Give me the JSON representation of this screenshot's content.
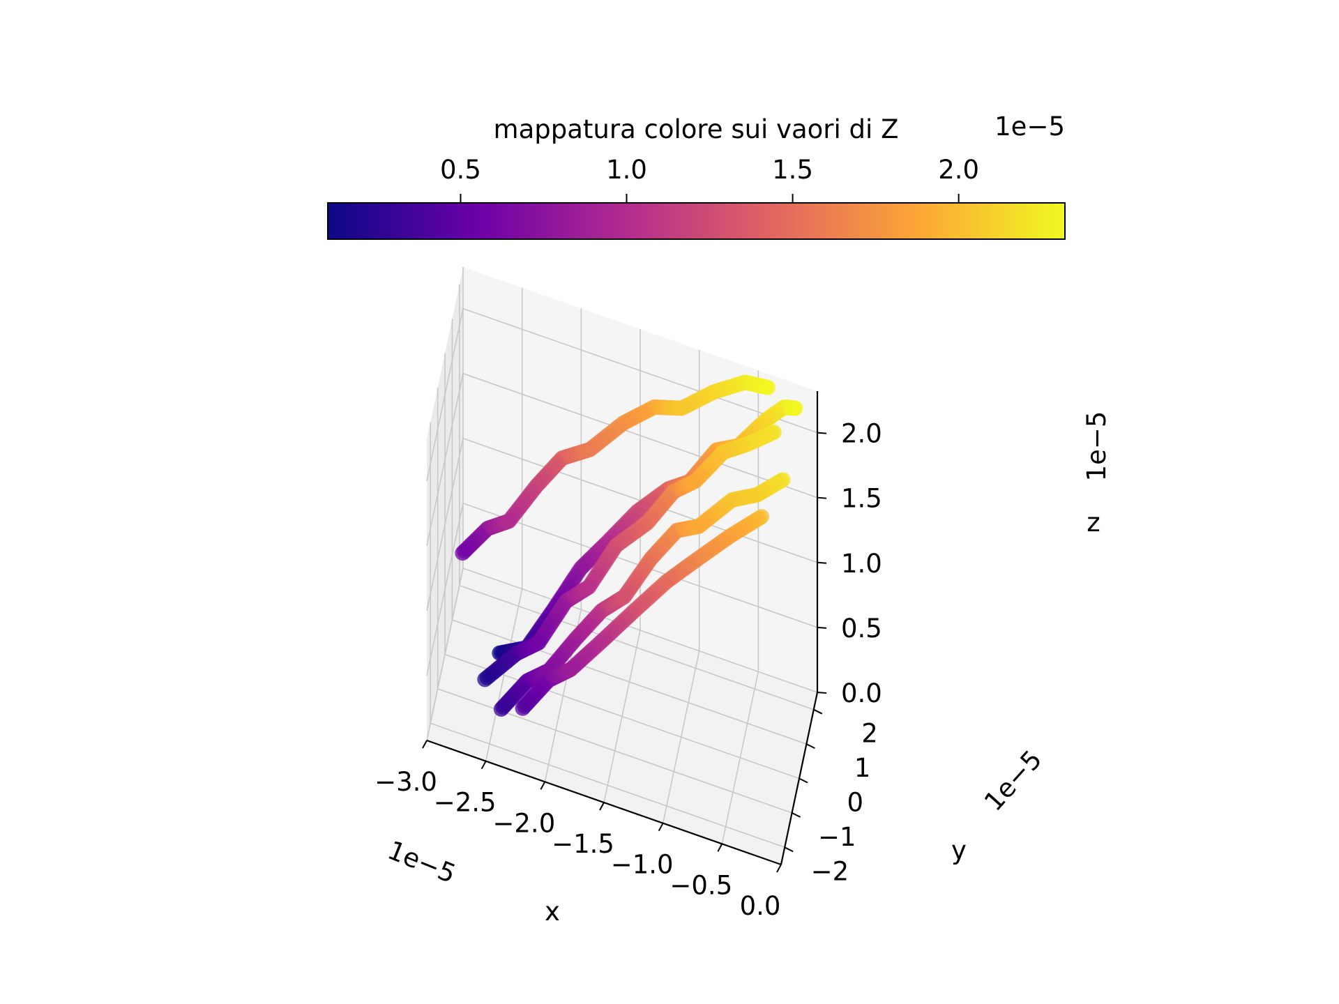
{
  "chart_data": {
    "type": "scatter",
    "projection": "3d",
    "colormap": "plasma",
    "colorbar": {
      "title": "mappatura colore sui vaori di Z",
      "orientation": "horizontal",
      "position": "top",
      "range": [
        1e-06,
        2.32e-05
      ],
      "ticks": [
        5e-06,
        1e-05,
        1.5e-05,
        2e-05
      ],
      "tick_labels": [
        "0.5",
        "1.0",
        "1.5",
        "2.0"
      ],
      "offset_text": "1e−5",
      "colors": [
        "#0d0887",
        "#6a00a8",
        "#b12a90",
        "#e16462",
        "#fca636",
        "#f0f921"
      ]
    },
    "axes": {
      "x": {
        "label": "x",
        "range": [
          -3e-05,
          0.0
        ],
        "ticks": [
          -3e-05,
          -2.5e-05,
          -2e-05,
          -1.5e-05,
          -1e-05,
          -5e-06,
          0.0
        ],
        "tick_labels": [
          "−3.0",
          "−2.5",
          "−2.0",
          "−1.5",
          "−1.0",
          "−0.5",
          "0.0"
        ],
        "offset_text": "1e−5"
      },
      "y": {
        "label": "y",
        "range": [
          -2.5e-05,
          2.5e-05
        ],
        "ticks": [
          -2e-05,
          -1e-05,
          0.0,
          1e-05,
          2e-05
        ],
        "tick_labels": [
          "−2",
          "−1",
          "0",
          "1",
          "2"
        ],
        "offset_text": "1e−5"
      },
      "z": {
        "label": "z",
        "range": [
          0.0,
          2.32e-05
        ],
        "ticks": [
          0.0,
          5e-06,
          1e-05,
          1.5e-05,
          2e-05
        ],
        "tick_labels": [
          "0.0",
          "0.5",
          "1.0",
          "1.5",
          "2.0"
        ],
        "offset_text": "1e−5"
      }
    },
    "grid": true,
    "series": [
      {
        "x": [
          -2.55e-05,
          -2.3e-05,
          -2.1e-05,
          -1.9e-05,
          -1.7e-05,
          -1.45e-05,
          -1.2e-05,
          -1e-05,
          -8e-06,
          -6e-06,
          -4e-06,
          -2.5e-06,
          -1.5e-06
        ],
        "y": [
          2e-06,
          -1e-06,
          3e-06,
          8e-06,
          1e-05,
          1.3e-05,
          1.5e-05,
          1.2e-05,
          1.6e-05,
          1.4e-05,
          1.8e-05,
          2e-05,
          1.9e-05
        ],
        "z": [
          1e-06,
          3e-06,
          5.5e-06,
          8e-06,
          1e-05,
          1.25e-05,
          1.45e-05,
          1.65e-05,
          1.85e-05,
          2e-05,
          2.15e-05,
          2.25e-05,
          2.3e-05
        ]
      },
      {
        "x": [
          -2.6e-05,
          -2.35e-05,
          -2.15e-05,
          -1.95e-05,
          -1.75e-05,
          -1.55e-05,
          -1.3e-05,
          -1.1e-05,
          -9e-06,
          -7e-06,
          -5e-06,
          -3e-06
        ],
        "y": [
          -1e-05,
          -7e-06,
          -9e-06,
          -4e-06,
          -5e-06,
          0.0,
          2e-06,
          6e-06,
          4e-06,
          9e-06,
          1e-05,
          1.4e-05
        ],
        "z": [
          2e-06,
          4e-06,
          6e-06,
          8.5e-06,
          1.05e-05,
          1.3e-05,
          1.5e-05,
          1.7e-05,
          1.9e-05,
          2.05e-05,
          2.15e-05,
          2.2e-05
        ]
      },
      {
        "x": [
          -2.4e-05,
          -2.2e-05,
          -2e-05,
          -1.8e-05,
          -1.6e-05,
          -1.4e-05,
          -1.2e-05,
          -1e-05,
          -8e-06,
          -5.5e-06,
          -3.5e-06,
          -1.5e-06
        ],
        "y": [
          -2e-05,
          -1.7e-05,
          -1.9e-05,
          -1.5e-05,
          -1.2e-05,
          -1.3e-05,
          -9e-06,
          -6e-06,
          -8e-06,
          -3e-06,
          -1e-06,
          2e-06
        ],
        "z": [
          3e-06,
          5e-06,
          7e-06,
          9e-06,
          1.1e-05,
          1.3e-05,
          1.55e-05,
          1.75e-05,
          1.9e-05,
          2.05e-05,
          2.1e-05,
          2.2e-05
        ]
      },
      {
        "x": [
          -2.9e-05,
          -2.7e-05,
          -2.5e-05,
          -2.3e-05,
          -2.1e-05,
          -1.85e-05,
          -1.6e-05,
          -1.35e-05,
          -1.1e-05,
          -8.5e-06,
          -6e-06,
          -4e-06
        ],
        "y": [
          8e-06,
          1e-05,
          7e-06,
          1.2e-05,
          1.5e-05,
          1.3e-05,
          1.8e-05,
          2e-05,
          1.7e-05,
          2.1e-05,
          2.3e-05,
          2.2e-05
        ],
        "z": [
          6e-06,
          8e-06,
          1e-05,
          1.2e-05,
          1.4e-05,
          1.6e-05,
          1.75e-05,
          1.9e-05,
          2.05e-05,
          2.15e-05,
          2.25e-05,
          2.3e-05
        ]
      },
      {
        "x": [
          -2.2e-05,
          -2e-05,
          -1.8e-05,
          -1.55e-05,
          -1.3e-05,
          -1.05e-05,
          -8e-06,
          -5.5e-06,
          -3e-06
        ],
        "y": [
          -2.3e-05,
          -2e-05,
          -2.2e-05,
          -1.8e-05,
          -1.6e-05,
          -1.2e-05,
          -1e-05,
          -6e-06,
          -3e-06
        ],
        "z": [
          4.5e-06,
          6.5e-06,
          8.5e-06,
          1.05e-05,
          1.3e-05,
          1.5e-05,
          1.7e-05,
          1.85e-05,
          2e-05
        ]
      }
    ]
  }
}
